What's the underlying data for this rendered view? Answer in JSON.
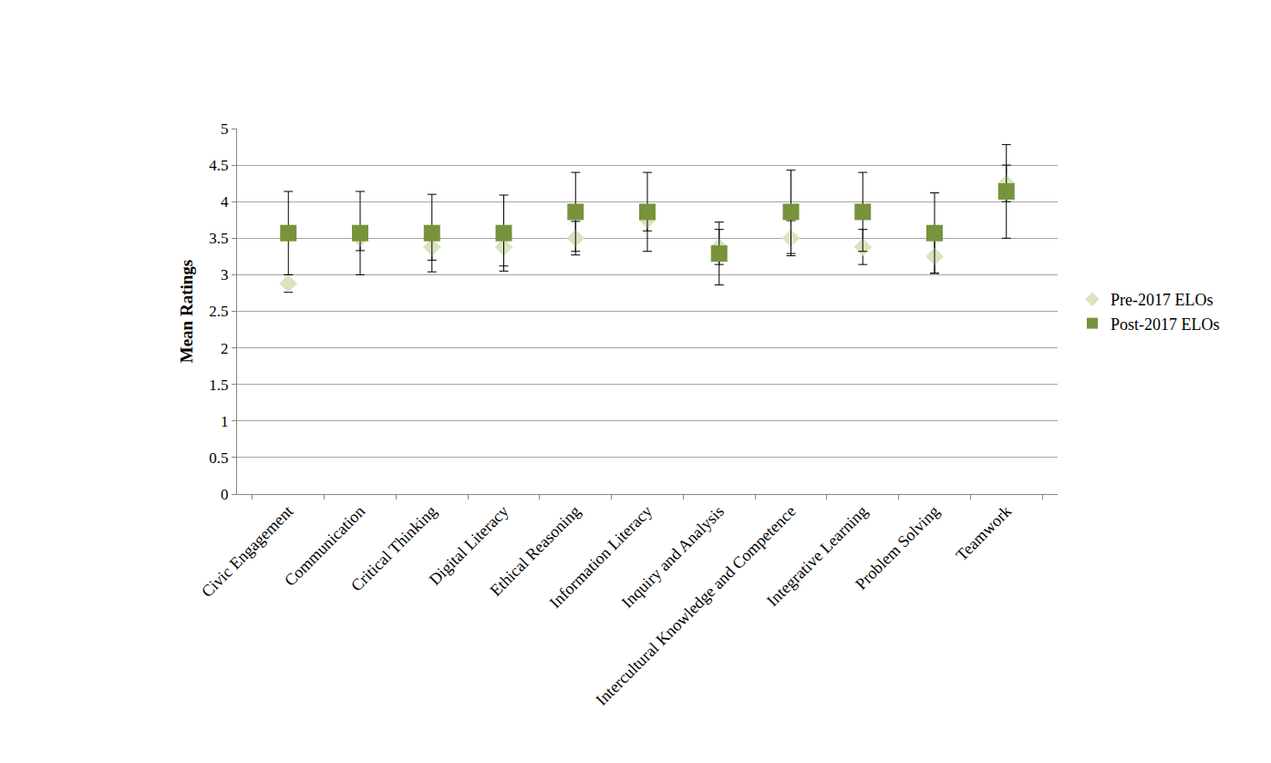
{
  "chart_data": {
    "type": "scatter",
    "y_label": "Mean Ratings",
    "categories": [
      "Civic Engagement",
      "Communication",
      "Critical Thinking",
      "Digital Literacy",
      "Ethical Reasoning",
      "Information Literacy",
      "Inquiry and Analysis",
      "Intercultural Knowledge and Competence",
      "Integrative Learning",
      "Problem Solving",
      "Teamwork"
    ],
    "series": [
      {
        "name": "Pre-2017 ELOs",
        "color": "#d7e4bd",
        "marker": "diamond",
        "values": [
          2.88,
          3.5,
          3.38,
          3.38,
          3.5,
          3.75,
          3.38,
          3.5,
          3.38,
          3.25,
          4.25
        ],
        "error": [
          0.12,
          0.17,
          0.18,
          0.26,
          0.23,
          0.15,
          0.24,
          0.24,
          0.24,
          0.23,
          0.25
        ]
      },
      {
        "name": "Post-2017 ELOs",
        "color": "#77933c",
        "marker": "square",
        "values": [
          3.57,
          3.57,
          3.57,
          3.57,
          3.86,
          3.86,
          3.29,
          3.86,
          3.86,
          3.57,
          4.14
        ],
        "error": [
          0.57,
          0.57,
          0.53,
          0.52,
          0.54,
          0.54,
          0.43,
          0.57,
          0.54,
          0.55,
          0.64
        ]
      }
    ],
    "ylim": [
      0,
      5
    ],
    "yticks": [
      0,
      0.5,
      1,
      1.5,
      2,
      2.5,
      3,
      3.5,
      4,
      4.5,
      5
    ],
    "grid": true,
    "legend": "right"
  }
}
